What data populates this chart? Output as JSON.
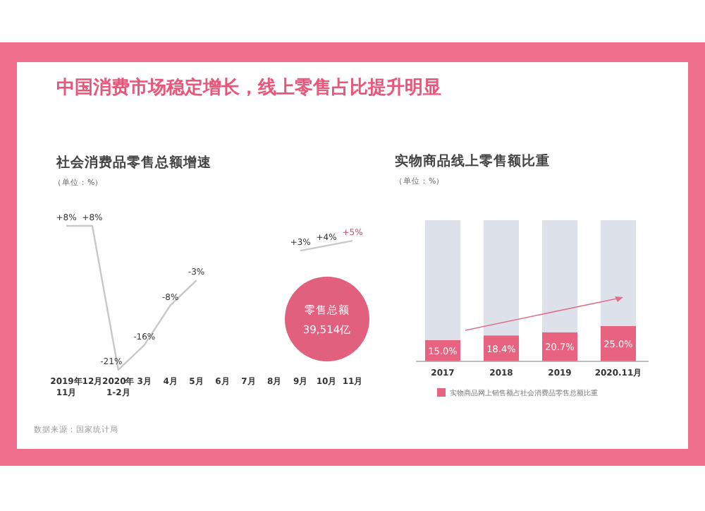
{
  "chart_data": [
    {
      "type": "other",
      "title": "中国消费市场稳定增长，线上零售占比提升明显"
    },
    {
      "type": "line",
      "title": "社会消费品零售总额增速",
      "subtitle": "（单位：%）",
      "categories": [
        "2019年\n11月",
        "12月",
        "2020年\n1-2月",
        "3月",
        "4月",
        "5月",
        "6月",
        "7月",
        "8月",
        "9月",
        "10月",
        "11月"
      ],
      "values": [
        8,
        8,
        -21,
        -16,
        -8,
        -3,
        null,
        null,
        null,
        3,
        4,
        5
      ],
      "value_labels": [
        "+8%",
        "+8%",
        "-21%",
        "-16%",
        "-8%",
        "-3%",
        null,
        null,
        null,
        "+3%",
        "+4%",
        "+5%"
      ],
      "color": "#c8c8c8",
      "annotations": [
        "零售总额\n39,514亿",
        "数据来源：国家统计局"
      ]
    },
    {
      "type": "bar",
      "stacked": true,
      "title": "实物商品线上零售额比重",
      "subtitle": "（单位：%）",
      "categories": [
        "2017",
        "2018",
        "2019",
        "2020.11月"
      ],
      "ylim": [
        0,
        100
      ],
      "legend": "bottom",
      "series": [
        {
          "name": "实物商品网上销售额占社会消费品零售总额比重",
          "color": "#e8637f",
          "values": [
            15.0,
            18.4,
            20.7,
            25.0
          ],
          "value_labels": [
            "15.0%",
            "18.4%",
            "20.7%",
            "25.0%"
          ]
        },
        {
          "color": "#dde2ea",
          "values": [
            85,
            81.6,
            79.3,
            75
          ]
        }
      ]
    }
  ]
}
